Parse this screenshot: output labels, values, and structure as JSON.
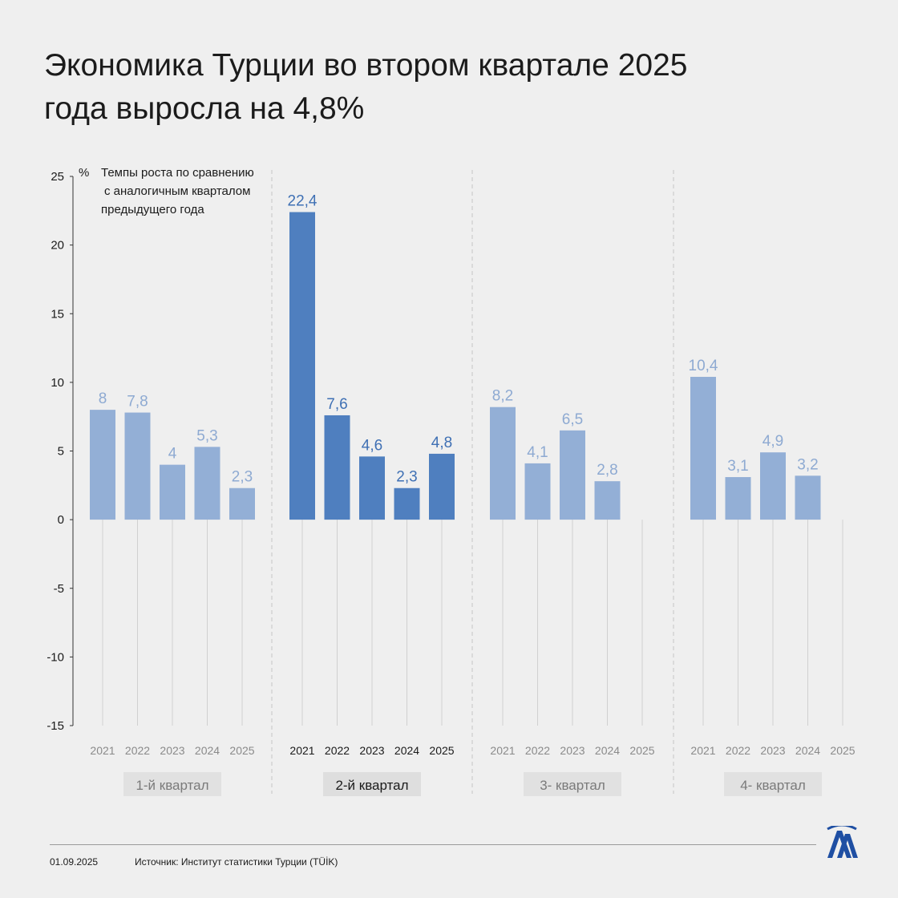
{
  "title_lines": [
    "Экономика Турции во втором квартале 2025",
    "года выросла на 4,8%"
  ],
  "chart_data": {
    "type": "bar",
    "unit_label": "%",
    "subtitle_lines": [
      "Темпы роста по сравнению",
      " с аналогичным кварталом",
      "предыдущего года"
    ],
    "ylim": [
      -15,
      25
    ],
    "yticks": [
      25,
      20,
      15,
      10,
      5,
      0,
      -5,
      -10,
      -15
    ],
    "ytick_labels": [
      "25",
      "20",
      "15",
      "10",
      "5",
      "0",
      "-5",
      "-10",
      "-15"
    ],
    "highlight_group": 1,
    "colors": {
      "normal_bar": "#93afd6",
      "highlight_bar": "#4f7fbf",
      "normal_label": "#8eaad2",
      "highlight_label": "#3f70b4"
    },
    "groups": [
      {
        "label": "1-й квартал",
        "years": [
          "2021",
          "2022",
          "2023",
          "2024",
          "2025"
        ],
        "values": [
          8,
          7.8,
          4,
          5.3,
          2.3
        ],
        "value_labels": [
          "8",
          "7,8",
          "4",
          "5,3",
          "2,3"
        ]
      },
      {
        "label": "2-й квартал",
        "years": [
          "2021",
          "2022",
          "2023",
          "2024",
          "2025"
        ],
        "values": [
          22.4,
          7.6,
          4.6,
          2.3,
          4.8
        ],
        "value_labels": [
          "22,4",
          "7,6",
          "4,6",
          "2,3",
          "4,8"
        ]
      },
      {
        "label": "3- квартал",
        "years": [
          "2021",
          "2022",
          "2023",
          "2024",
          "2025"
        ],
        "values": [
          8.2,
          4.1,
          6.5,
          2.8,
          null
        ],
        "value_labels": [
          "8,2",
          "4,1",
          "6,5",
          "2,8",
          ""
        ]
      },
      {
        "label": "4- квартал",
        "years": [
          "2021",
          "2022",
          "2023",
          "2024",
          "2025"
        ],
        "values": [
          10.4,
          3.1,
          4.9,
          3.2,
          null
        ],
        "value_labels": [
          "10,4",
          "3,1",
          "4,9",
          "3,2",
          ""
        ]
      }
    ]
  },
  "footer": {
    "date": "01.09.2025",
    "source": "Источник: Институт статистики Турции (TÜİK)"
  },
  "logo": {
    "icon": "aa-logo-icon",
    "color": "#1f4fa3"
  }
}
